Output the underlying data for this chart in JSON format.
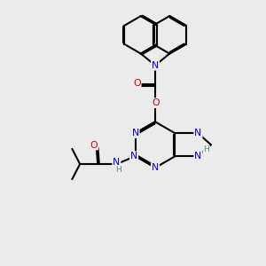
{
  "bg_color": "#ebebeb",
  "bond_color": "#000000",
  "N_color": "#0000cc",
  "O_color": "#cc0000",
  "H_color": "#5f8f8f",
  "lw": 1.5,
  "dbl_sep": 0.055,
  "font_size": 7.8,
  "xlim": [
    0,
    10
  ],
  "ylim": [
    0,
    10
  ]
}
